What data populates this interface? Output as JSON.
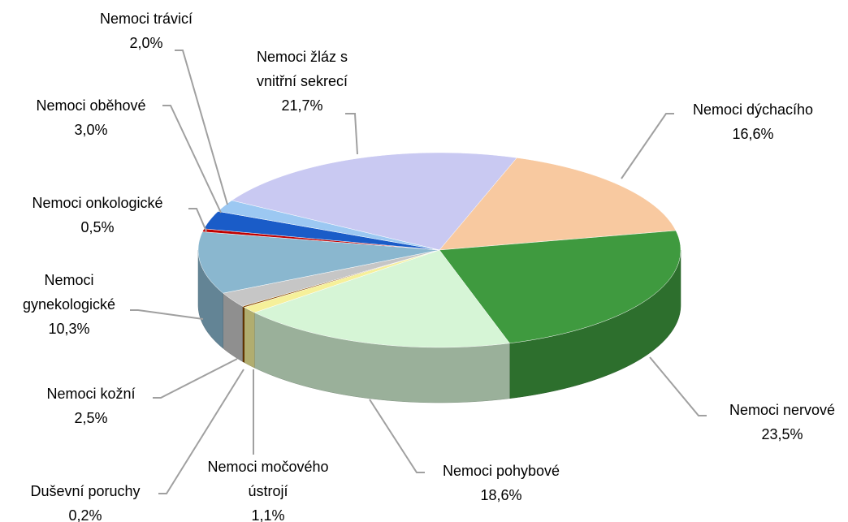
{
  "chart_data": {
    "type": "pie",
    "categories": [
      "Nemoci žláz s vnitřní sekrecí",
      "Nemoci dýchacího",
      "Nemoci nervové",
      "Nemoci pohybové",
      "Nemoci močového ústrojí",
      "Duševní poruchy",
      "Nemoci kožní",
      "Nemoci gynekologické",
      "Nemoci onkologické",
      "Nemoci oběhové",
      "Nemoci trávicí"
    ],
    "values": [
      21.7,
      16.6,
      23.5,
      18.6,
      1.1,
      0.2,
      2.5,
      10.3,
      0.5,
      3.0,
      2.0
    ],
    "value_labels": [
      "21,7%",
      "16,6%",
      "23,5%",
      "18,6%",
      "1,1%",
      "0,2%",
      "2,5%",
      "10,3%",
      "0,5%",
      "3,0%",
      "2,0%"
    ],
    "colors": [
      "#c9c9f2",
      "#f8c9a0",
      "#3f9a3f",
      "#d6f5d6",
      "#f6f09a",
      "#8a4a00",
      "#c6c6c6",
      "#8ab7cf",
      "#c00000",
      "#1a5cc8",
      "#9cc8f2"
    ]
  }
}
